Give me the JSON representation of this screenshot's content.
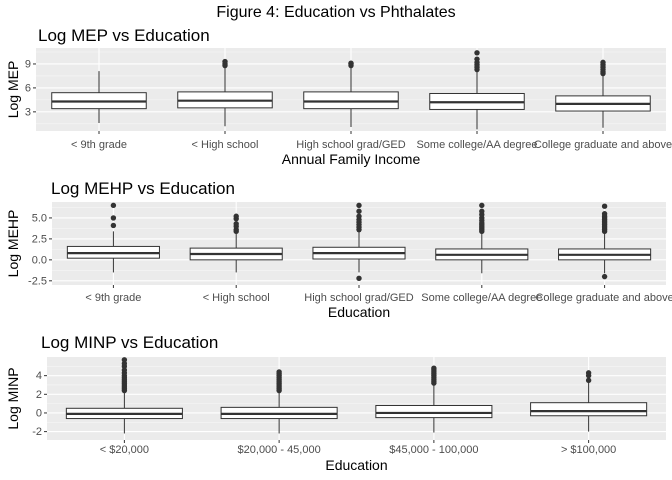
{
  "figure": {
    "title": "Figure 4: Education vs Phthalates"
  },
  "chart_data": [
    {
      "type": "box",
      "title": "Log MEP vs Education",
      "xlabel": "Annual Family Income",
      "ylabel": "Log MEP",
      "ylim": [
        0.6,
        11.0
      ],
      "yticks": [
        3,
        6,
        9
      ],
      "ytick_labels": [
        "3",
        "6",
        "9"
      ],
      "grid": true,
      "categories": [
        "< 9th grade",
        "< High school",
        "High school grad/GED",
        "Some college/AA degree",
        "College graduate and above"
      ],
      "boxes": [
        {
          "whisker_low": 1.6,
          "q1": 3.4,
          "median": 4.3,
          "q3": 5.4,
          "whisker_high": 8.1,
          "outliers": []
        },
        {
          "whisker_low": 1.2,
          "q1": 3.5,
          "median": 4.4,
          "q3": 5.5,
          "whisker_high": 8.6,
          "outliers": [
            8.8,
            9.0,
            9.3
          ]
        },
        {
          "whisker_low": 1.1,
          "q1": 3.4,
          "median": 4.3,
          "q3": 5.5,
          "whisker_high": 8.6,
          "outliers": [
            8.8,
            9.0,
            9.1
          ]
        },
        {
          "whisker_low": 0.8,
          "q1": 3.3,
          "median": 4.2,
          "q3": 5.3,
          "whisker_high": 8.1,
          "outliers": [
            8.3,
            8.6,
            8.9,
            9.2,
            9.6,
            10.4
          ]
        },
        {
          "whisker_low": 1.0,
          "q1": 3.1,
          "median": 4.0,
          "q3": 5.0,
          "whisker_high": 7.6,
          "outliers": [
            7.8,
            8.0,
            8.3,
            8.6,
            8.9,
            9.2
          ]
        }
      ]
    },
    {
      "type": "box",
      "title": "Log MEHP vs Education",
      "xlabel": "Education",
      "ylabel": "Log MEHP",
      "ylim": [
        -3.0,
        6.9
      ],
      "yticks": [
        -2.5,
        0,
        2.5,
        5
      ],
      "ytick_labels": [
        "-2.5",
        "0.0",
        "2.5",
        "5.0"
      ],
      "grid": true,
      "categories": [
        "< 9th grade",
        "< High school",
        "High school grad/GED",
        "Some college/AA degree",
        "College graduate and above"
      ],
      "boxes": [
        {
          "whisker_low": -1.5,
          "q1": 0.2,
          "median": 0.8,
          "q3": 1.6,
          "whisker_high": 3.4,
          "outliers": [
            4.1,
            5.0,
            6.5
          ]
        },
        {
          "whisker_low": -1.5,
          "q1": 0.0,
          "median": 0.7,
          "q3": 1.4,
          "whisker_high": 3.1,
          "outliers": [
            3.4,
            3.6,
            4.0,
            4.3,
            4.9,
            5.2
          ]
        },
        {
          "whisker_low": -1.5,
          "q1": 0.1,
          "median": 0.8,
          "q3": 1.5,
          "whisker_high": 3.4,
          "outliers": [
            3.6,
            3.9,
            4.2,
            4.5,
            4.8,
            5.2,
            5.8,
            6.5,
            -2.2
          ]
        },
        {
          "whisker_low": -1.6,
          "q1": 0.0,
          "median": 0.6,
          "q3": 1.3,
          "whisker_high": 3.2,
          "outliers": [
            3.4,
            3.6,
            3.8,
            4.0,
            4.2,
            4.4,
            4.7,
            5.0,
            5.4,
            5.8,
            6.5
          ]
        },
        {
          "whisker_low": -1.6,
          "q1": 0.0,
          "median": 0.6,
          "q3": 1.3,
          "whisker_high": 3.2,
          "outliers": [
            3.4,
            3.6,
            3.8,
            4.0,
            4.2,
            4.4,
            4.6,
            4.8,
            5.0,
            5.2,
            5.5,
            6.4,
            -2.0
          ]
        }
      ]
    },
    {
      "type": "box",
      "title": "Log MINP vs Education",
      "xlabel": "Education",
      "ylabel": "Log MINP",
      "ylim": [
        -2.9,
        6.0
      ],
      "yticks": [
        -2,
        0,
        2,
        4
      ],
      "ytick_labels": [
        "-2",
        "0",
        "2",
        "4"
      ],
      "grid": true,
      "categories": [
        "< $20,000",
        "$20,000 - 45,000",
        "$45,000 - 100,000",
        "> $100,000"
      ],
      "boxes": [
        {
          "whisker_low": -2.2,
          "q1": -0.6,
          "median": -0.1,
          "q3": 0.5,
          "whisker_high": 2.2,
          "outliers": [
            2.4,
            2.6,
            2.8,
            3.0,
            3.2,
            3.4,
            3.6,
            3.8,
            4.0,
            4.3,
            4.6,
            5.0,
            5.3,
            5.7
          ]
        },
        {
          "whisker_low": -2.2,
          "q1": -0.6,
          "median": -0.1,
          "q3": 0.6,
          "whisker_high": 2.2,
          "outliers": [
            2.4,
            2.6,
            2.8,
            3.0,
            3.2,
            3.4,
            3.6,
            3.8,
            4.0,
            4.2,
            4.4
          ]
        },
        {
          "whisker_low": -2.1,
          "q1": -0.5,
          "median": 0.0,
          "q3": 0.8,
          "whisker_high": 3.0,
          "outliers": [
            3.2,
            3.4,
            3.6,
            3.8,
            4.0,
            4.2,
            4.4,
            4.6,
            4.8
          ]
        },
        {
          "whisker_low": -2.0,
          "q1": -0.3,
          "median": 0.2,
          "q3": 1.1,
          "whisker_high": 3.3,
          "outliers": [
            3.5,
            4.0,
            4.3
          ]
        }
      ]
    }
  ]
}
